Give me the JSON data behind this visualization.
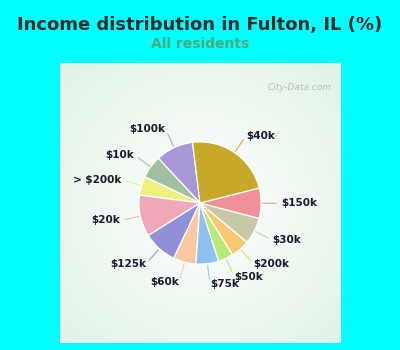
{
  "title": "Income distribution in Fulton, IL (%)",
  "subtitle": "All residents",
  "title_fontsize": 13,
  "subtitle_fontsize": 10,
  "background_color": "#00FFFF",
  "chart_bg_color": "#e0f0e8",
  "watermark": "City-Data.com",
  "labels": [
    "$100k",
    "$10k",
    "> $200k",
    "$20k",
    "$125k",
    "$60k",
    "$75k",
    "$50k",
    "$200k",
    "$30k",
    "$150k",
    "$40k"
  ],
  "values": [
    10,
    6,
    5,
    11,
    9,
    6,
    6,
    4,
    5,
    7,
    8,
    23
  ],
  "colors": [
    "#a898d8",
    "#a0c0a0",
    "#f0f080",
    "#f0a8b8",
    "#9090d8",
    "#f8c8a0",
    "#90c0f0",
    "#b8e878",
    "#f8c870",
    "#c8c8a8",
    "#f09098",
    "#c8a828"
  ],
  "label_fontsize": 7.5,
  "startangle": 97
}
